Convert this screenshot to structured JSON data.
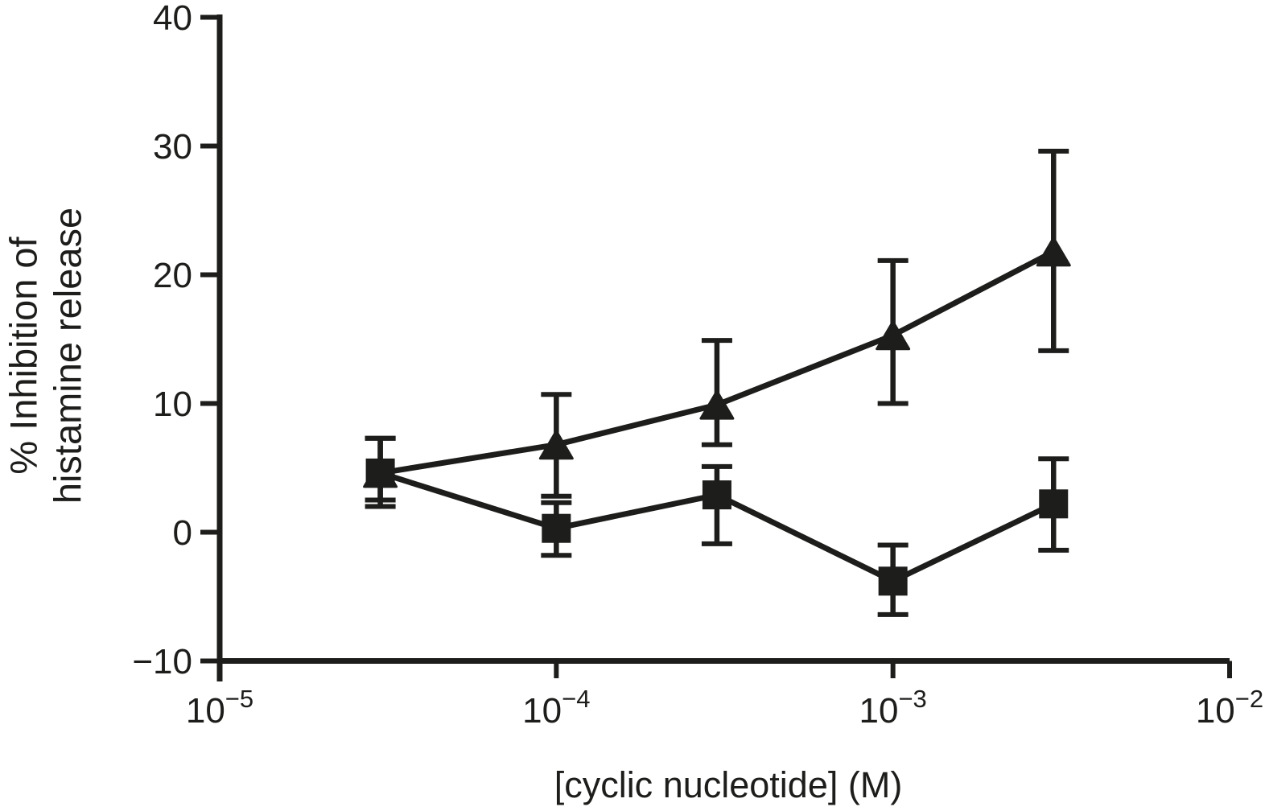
{
  "chart_data": {
    "type": "line",
    "title": "",
    "xlabel": "[cyclic nucleotide] (M)",
    "ylabel_lines": [
      "% Inhibition of",
      "histamine release"
    ],
    "x_scale": "log",
    "xlim": [
      1e-05,
      0.01
    ],
    "ylim": [
      -10,
      40
    ],
    "grid": false,
    "legend": "none",
    "x_ticks": [
      {
        "value": 1e-05,
        "base": "10",
        "exp": "−5"
      },
      {
        "value": 0.0001,
        "base": "10",
        "exp": "−4"
      },
      {
        "value": 0.001,
        "base": "10",
        "exp": "−3"
      },
      {
        "value": 0.01,
        "base": "10",
        "exp": "−2"
      }
    ],
    "y_ticks": [
      {
        "value": 40,
        "label": "40"
      },
      {
        "value": 30,
        "label": "30"
      },
      {
        "value": 20,
        "label": "20"
      },
      {
        "value": 10,
        "label": "10"
      },
      {
        "value": 0,
        "label": "0"
      },
      {
        "value": -10,
        "label": "−10"
      }
    ],
    "x": [
      3e-05,
      0.0001,
      0.0003,
      0.001,
      0.003
    ],
    "series": [
      {
        "name": "filled-triangle series",
        "marker": "triangle",
        "y": [
          4.6,
          6.8,
          9.9,
          15.3,
          21.8
        ],
        "err_up": [
          2.7,
          3.9,
          5.0,
          5.8,
          7.8
        ],
        "err_down": [
          2.1,
          4.0,
          3.1,
          5.3,
          7.7
        ]
      },
      {
        "name": "filled-square series",
        "marker": "square",
        "y": [
          4.6,
          0.3,
          2.9,
          -3.8,
          2.2
        ],
        "err_up": [
          2.7,
          2.0,
          2.2,
          2.8,
          3.5
        ],
        "err_down": [
          2.6,
          2.1,
          3.8,
          2.6,
          3.6
        ]
      }
    ],
    "colors": {
      "ink": "#1d1d1b",
      "background": "#ffffff"
    }
  }
}
